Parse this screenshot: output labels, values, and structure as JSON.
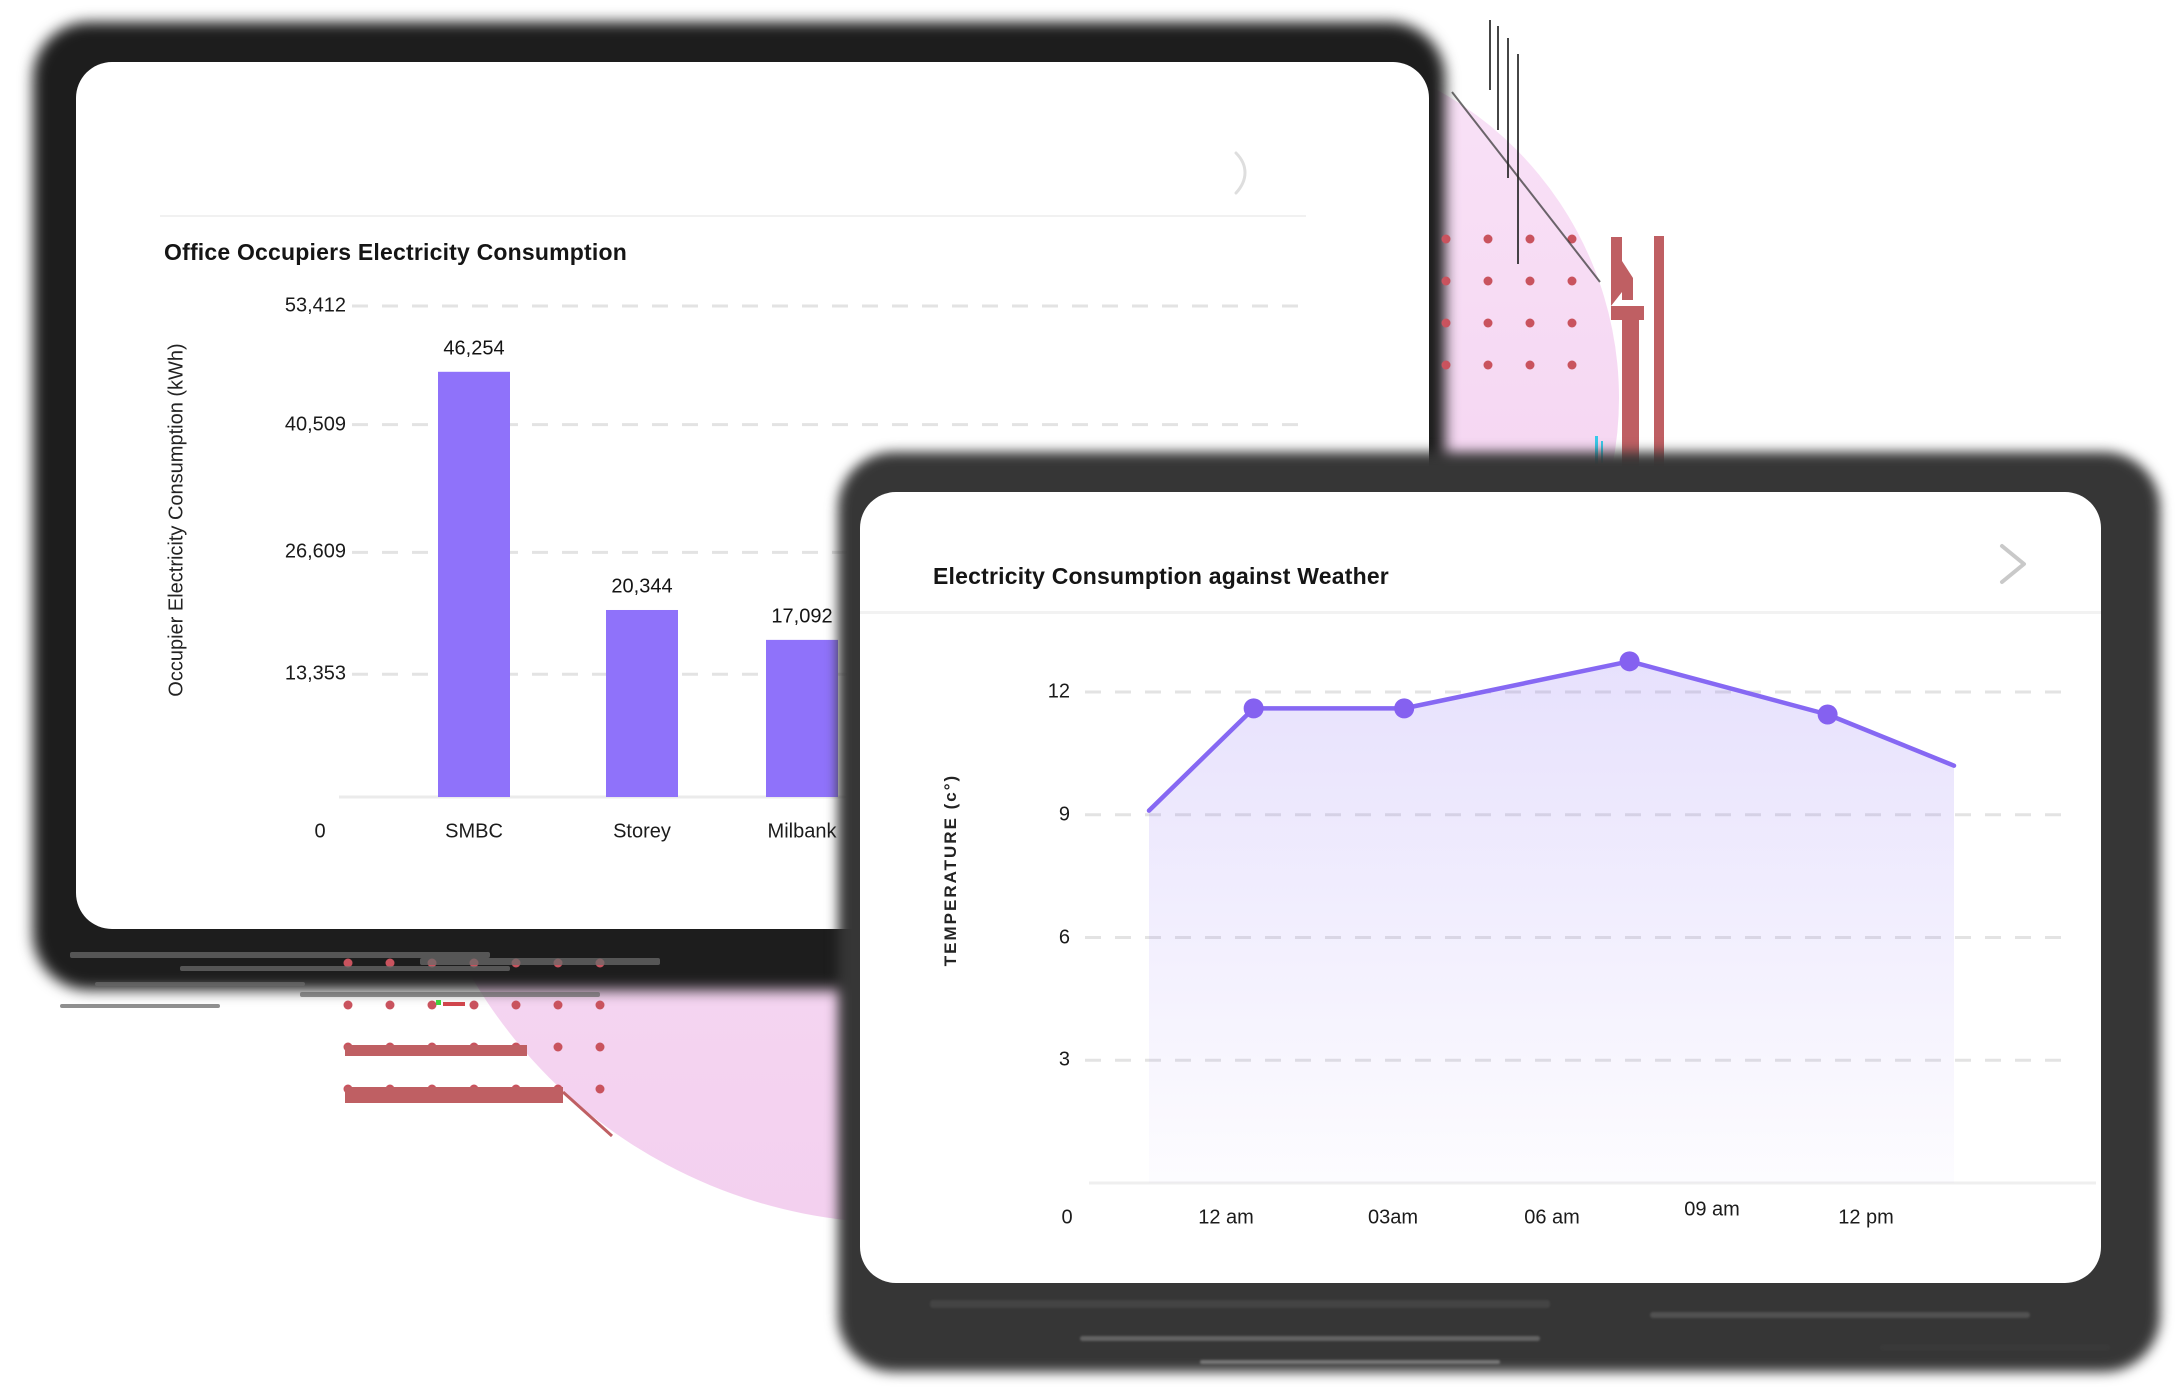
{
  "card1": {
    "title": "Office Occupiers Electricity Consumption"
  },
  "card2": {
    "title": "Electricity Consumption against Weather"
  },
  "chart_data": [
    {
      "type": "bar",
      "title": "Office Occupiers Electricity Consumption",
      "categories": [
        "SMBC",
        "Storey",
        "Milbank"
      ],
      "values": [
        46254,
        20344,
        17092
      ],
      "value_labels": [
        "46,254",
        "20,344",
        "17,092"
      ],
      "origin_label": "0",
      "ylabel": "Occupier Electricity Consumption (kWh)",
      "y_ticks": [
        {
          "value": 13353,
          "label": "13,353"
        },
        {
          "value": 26609,
          "label": "26,609"
        },
        {
          "value": 40509,
          "label": "40,509"
        },
        {
          "value": 53412,
          "label": "53,412"
        }
      ],
      "ylim": [
        0,
        53412
      ],
      "grid": "horizontal-dashed",
      "legend": "none",
      "bar_color": "#8F72FA"
    },
    {
      "type": "area",
      "title": "Electricity Consumption against Weather",
      "ylabel": "TEMPERATURE (c°)",
      "x_ticks": [
        "0",
        "12 am",
        "03am",
        "06 am",
        "09 am",
        "12 pm"
      ],
      "y_ticks": [
        3,
        6,
        9,
        12
      ],
      "ylim": [
        0,
        13
      ],
      "grid": "horizontal-dashed",
      "legend": "none",
      "series": [
        {
          "name": "Temperature",
          "points": [
            {
              "x_frac": 0.0,
              "temp": 9.1,
              "marker": false
            },
            {
              "x_frac": 0.13,
              "temp": 11.6,
              "marker": true
            },
            {
              "x_frac": 0.317,
              "temp": 11.6,
              "marker": true
            },
            {
              "x_frac": 0.597,
              "temp": 12.75,
              "marker": true
            },
            {
              "x_frac": 0.843,
              "temp": 11.45,
              "marker": true
            },
            {
              "x_frac": 1.0,
              "temp": 10.2,
              "marker": false
            }
          ]
        }
      ],
      "line_color": "#8668F3",
      "marker_color": "#8561F0"
    }
  ],
  "style": {
    "grid_color": "#e3e3e3",
    "axis_color": "#ebebeb",
    "tick_color": "#1b1b1b",
    "chevron1_color": "#dedede",
    "chevron2_color": "#c9c9c9"
  },
  "decor": {
    "pink_top": "#f9e2f7",
    "pink_bottom": "#f3d0ef",
    "dot_color": "#c9535e",
    "stripe_color": "#bf5f63",
    "accent_bar_color": "#bf5f63",
    "cyan_accent": "#38c9ea",
    "green_accent": "#3ed43e",
    "red_accent": "#d0454c",
    "glitch_color": "#262626"
  }
}
